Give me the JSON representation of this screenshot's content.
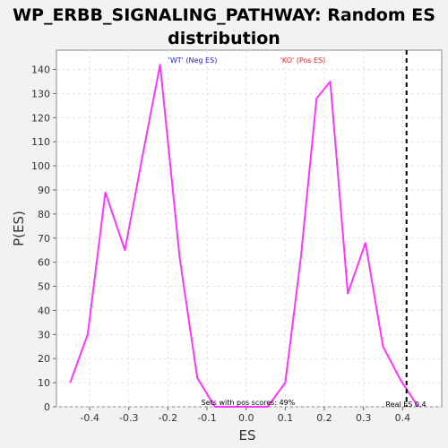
{
  "chart_data": {
    "type": "line",
    "title_line1": "WP_ERBB_SIGNALING_PATHWAY: Random ES",
    "title_line2": "distribution",
    "xlabel": "ES",
    "ylabel": "P(ES)",
    "xlim": [
      -0.485,
      0.5
    ],
    "ylim": [
      0,
      148
    ],
    "xticks": [
      -0.4,
      -0.3,
      -0.2,
      -0.1,
      0.0,
      0.1,
      0.2,
      0.3,
      0.4
    ],
    "xtick_labels": [
      "-0.4",
      "-0.3",
      "-0.2",
      "-0.1",
      "0.0",
      "0.1",
      "0.2",
      "0.3",
      "0.4"
    ],
    "yticks": [
      0,
      10,
      20,
      30,
      40,
      50,
      60,
      70,
      80,
      90,
      100,
      110,
      120,
      130,
      140
    ],
    "grid": true,
    "series": [
      {
        "color": "#ff33ff",
        "x": [
          -0.45,
          -0.405,
          -0.36,
          -0.31,
          -0.265,
          -0.22,
          -0.17,
          -0.125,
          -0.08,
          -0.035,
          0.01,
          0.055,
          0.1,
          0.14,
          0.18,
          0.215,
          0.26,
          0.305,
          0.35,
          0.395,
          0.44
        ],
        "y": [
          10,
          30,
          89,
          65,
          104,
          142,
          62,
          12,
          0,
          0,
          0,
          0,
          10,
          62,
          128,
          135,
          47,
          68,
          25,
          11,
          0
        ]
      }
    ],
    "real_es": 0.41,
    "annotations": {
      "neg_label": "'WT' (Neg ES)",
      "pos_label": "'KO' (Pos ES)",
      "pos_scores": "Sets with pos scores: 49%",
      "real_es_label": "Real ES 0.4"
    },
    "colors": {
      "neg": "#2222cc",
      "pos": "#ee2222",
      "line": "#ff33ff"
    }
  }
}
